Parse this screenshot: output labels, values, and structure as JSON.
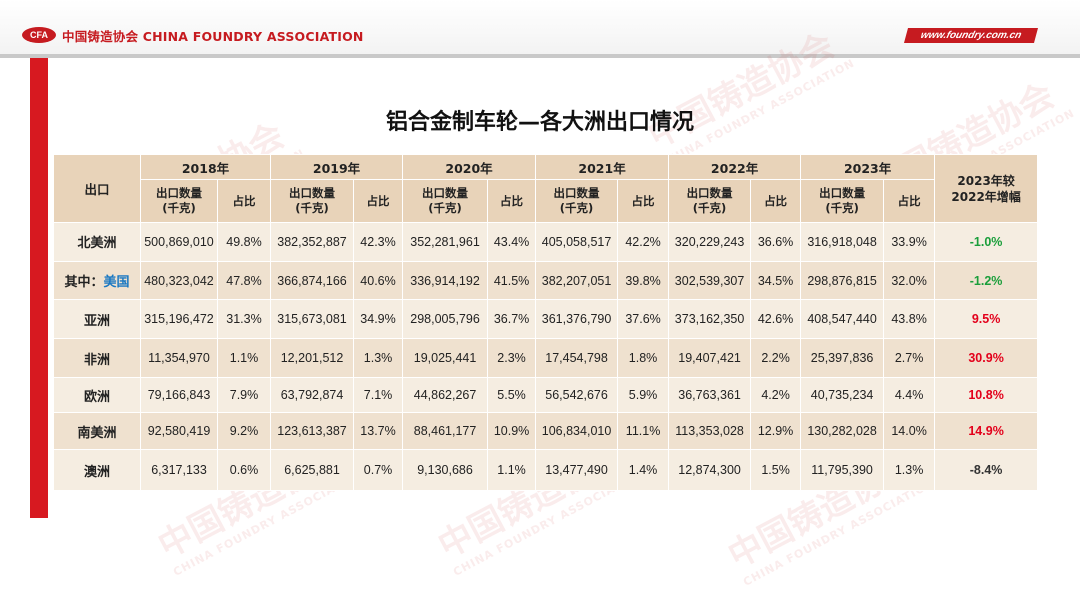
{
  "header": {
    "logo_mark": "CFA",
    "logo_text": "中国铸造协会 CHINA FOUNDRY ASSOCIATION",
    "url": "www.foundry.com.cn"
  },
  "watermark": {
    "main": "中国铸造协会",
    "sub": "CHINA FOUNDRY ASSOCIATION"
  },
  "title": "铝合金制车轮—各大洲出口情况",
  "table": {
    "corner": "出口",
    "years": [
      "2018年",
      "2019年",
      "2020年",
      "2021年",
      "2022年",
      "2023年"
    ],
    "sub_qty": "出口数量",
    "sub_qty_unit": "(千克)",
    "sub_share": "占比",
    "change_header_line1": "2023年较",
    "change_header_line2": "2022年增幅",
    "rows": [
      {
        "label": "北美洲",
        "values": [
          "500,869,010",
          "49.8%",
          "382,352,887",
          "42.3%",
          "352,281,961",
          "43.4%",
          "405,058,517",
          "42.2%",
          "320,229,243",
          "36.6%",
          "316,918,048",
          "33.9%"
        ],
        "change": "-1.0%"
      },
      {
        "label": "其中：",
        "label_sub": "美国",
        "values": [
          "480,323,042",
          "47.8%",
          "366,874,166",
          "40.6%",
          "336,914,192",
          "41.5%",
          "382,207,051",
          "39.8%",
          "302,539,307",
          "34.5%",
          "298,876,815",
          "32.0%"
        ],
        "change": "-1.2%"
      },
      {
        "label": "亚洲",
        "values": [
          "315,196,472",
          "31.3%",
          "315,673,081",
          "34.9%",
          "298,005,796",
          "36.7%",
          "361,376,790",
          "37.6%",
          "373,162,350",
          "42.6%",
          "408,547,440",
          "43.8%"
        ],
        "change": "9.5%"
      },
      {
        "label": "非洲",
        "values": [
          "11,354,970",
          "1.1%",
          "12,201,512",
          "1.3%",
          "19,025,441",
          "2.3%",
          "17,454,798",
          "1.8%",
          "19,407,421",
          "2.2%",
          "25,397,836",
          "2.7%"
        ],
        "change": "30.9%"
      },
      {
        "label": "欧洲",
        "values": [
          "79,166,843",
          "7.9%",
          "63,792,874",
          "7.1%",
          "44,862,267",
          "5.5%",
          "56,542,676",
          "5.9%",
          "36,763,361",
          "4.2%",
          "40,735,234",
          "4.4%"
        ],
        "change": "10.8%"
      },
      {
        "label": "南美洲",
        "values": [
          "92,580,419",
          "9.2%",
          "123,613,387",
          "13.7%",
          "88,461,177",
          "10.9%",
          "106,834,010",
          "11.1%",
          "113,353,028",
          "12.9%",
          "130,282,028",
          "14.0%"
        ],
        "change": "14.9%"
      },
      {
        "label": "澳洲",
        "values": [
          "6,317,133",
          "0.6%",
          "6,625,881",
          "0.7%",
          "9,130,686",
          "1.1%",
          "13,477,490",
          "1.4%",
          "12,874,300",
          "1.5%",
          "11,795,390",
          "1.3%"
        ],
        "change": "-8.4%"
      }
    ]
  },
  "colors": {
    "brand_red": "#c61b20",
    "header_bg": "#e8d3b9",
    "row_light": "#f5ede1",
    "row_dark": "#efe1cf",
    "increase": "#e3001b",
    "decrease": "#1a9e3a",
    "country_blue": "#1a78c2"
  }
}
